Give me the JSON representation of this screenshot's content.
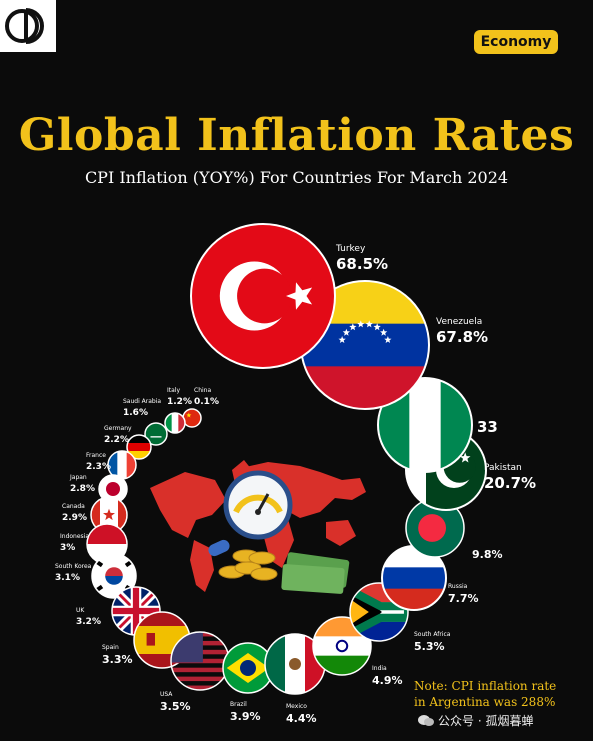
{
  "header": {
    "badge": "Economy",
    "title": "Global Inflation Rates",
    "subtitle": "CPI Inflation (YOY%) For Countries For March 2024"
  },
  "note": {
    "line1": "Note: CPI inflation rate",
    "line2": "in Argentina was 288%"
  },
  "watermark": {
    "text": "公众号 · 孤烟暮蝉",
    "icon": "wechat-icon"
  },
  "chart_data": {
    "type": "bubble",
    "title": "Global Inflation Rates",
    "subtitle": "CPI Inflation (YOY%) For Countries For March 2024",
    "unit": "%",
    "series": [
      {
        "name": "Turkey",
        "value": 68.5,
        "label": "68.5%"
      },
      {
        "name": "Venezuela",
        "value": 67.8,
        "label": "67.8%"
      },
      {
        "name": "Nigeria",
        "value": 33.2,
        "label": "33"
      },
      {
        "name": "Pakistan",
        "value": 20.7,
        "label": "20.7%"
      },
      {
        "name": "Bangladesh",
        "value": 9.8,
        "label": "9.8%"
      },
      {
        "name": "Russia",
        "value": 7.7,
        "label": "7.7%"
      },
      {
        "name": "South Africa",
        "value": 5.3,
        "label": "5.3%"
      },
      {
        "name": "India",
        "value": 4.9,
        "label": "4.9%"
      },
      {
        "name": "Mexico",
        "value": 4.4,
        "label": "4.4%"
      },
      {
        "name": "Brazil",
        "value": 3.9,
        "label": "3.9%"
      },
      {
        "name": "USA",
        "value": 3.5,
        "label": "3.5%"
      },
      {
        "name": "Spain",
        "value": 3.3,
        "label": "3.3%"
      },
      {
        "name": "UK",
        "value": 3.2,
        "label": "3.2%"
      },
      {
        "name": "South Korea",
        "value": 3.1,
        "label": "3.1%"
      },
      {
        "name": "Indonesia",
        "value": 3.0,
        "label": "3%"
      },
      {
        "name": "Canada",
        "value": 2.9,
        "label": "2.9%"
      },
      {
        "name": "Japan",
        "value": 2.8,
        "label": "2.8%"
      },
      {
        "name": "France",
        "value": 2.3,
        "label": "2.3%"
      },
      {
        "name": "Germany",
        "value": 2.2,
        "label": "2.2%"
      },
      {
        "name": "Saudi Arabia",
        "value": 1.6,
        "label": "1.6%"
      },
      {
        "name": "Italy",
        "value": 1.2,
        "label": "1.2%"
      },
      {
        "name": "China",
        "value": 0.1,
        "label": "0.1%"
      }
    ],
    "colors": {
      "accent": "#f2c21b",
      "red": "#e30a17",
      "map": "#d9302a"
    }
  }
}
